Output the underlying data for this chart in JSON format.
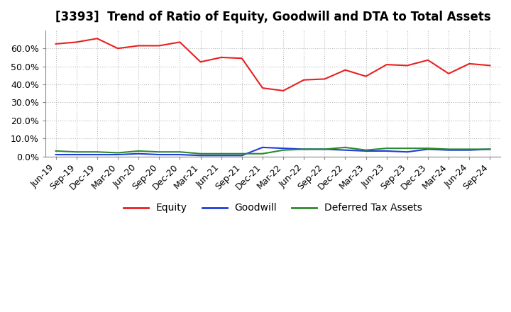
{
  "title": "[3393]  Trend of Ratio of Equity, Goodwill and DTA to Total Assets",
  "x_labels": [
    "Jun-19",
    "Sep-19",
    "Dec-19",
    "Mar-20",
    "Jun-20",
    "Sep-20",
    "Dec-20",
    "Mar-21",
    "Jun-21",
    "Sep-21",
    "Dec-21",
    "Mar-22",
    "Jun-22",
    "Sep-22",
    "Dec-22",
    "Mar-23",
    "Jun-23",
    "Sep-23",
    "Dec-23",
    "Mar-24",
    "Jun-24",
    "Sep-24"
  ],
  "equity": [
    62.5,
    63.5,
    65.5,
    60.0,
    61.5,
    61.5,
    63.5,
    52.5,
    55.0,
    54.5,
    38.0,
    36.5,
    42.5,
    43.0,
    48.0,
    44.5,
    51.0,
    50.5,
    53.5,
    46.0,
    51.5,
    50.5
  ],
  "goodwill": [
    1.0,
    1.0,
    1.0,
    1.0,
    1.5,
    1.0,
    1.0,
    0.5,
    0.5,
    0.5,
    5.0,
    4.5,
    4.0,
    4.0,
    3.5,
    3.0,
    3.0,
    2.5,
    4.0,
    3.5,
    3.5,
    4.0
  ],
  "dta": [
    3.0,
    2.5,
    2.5,
    2.0,
    3.0,
    2.5,
    2.5,
    1.5,
    1.5,
    1.5,
    1.5,
    3.5,
    4.0,
    4.0,
    5.0,
    3.5,
    4.5,
    4.5,
    4.5,
    4.0,
    4.0,
    4.0
  ],
  "equity_color": "#e82020",
  "goodwill_color": "#1f3ddb",
  "dta_color": "#2d8a2d",
  "ylim": [
    0,
    70
  ],
  "yticks": [
    0,
    10,
    20,
    30,
    40,
    50,
    60
  ],
  "ytick_labels": [
    "0.0%",
    "10.0%",
    "20.0%",
    "30.0%",
    "40.0%",
    "50.0%",
    "60.0%"
  ],
  "legend_labels": [
    "Equity",
    "Goodwill",
    "Deferred Tax Assets"
  ],
  "background_color": "#ffffff",
  "grid_color": "#bbbbbb",
  "title_fontsize": 12,
  "tick_fontsize": 9,
  "legend_fontsize": 10
}
